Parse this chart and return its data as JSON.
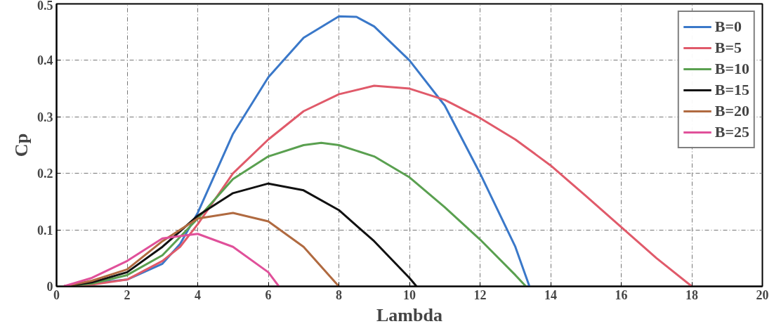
{
  "chart_data": {
    "type": "line",
    "xlabel": "Lambda",
    "ylabel": "Cp",
    "xlim": [
      0,
      20
    ],
    "xticks": [
      0,
      2,
      4,
      6,
      8,
      10,
      12,
      14,
      16,
      18,
      20
    ],
    "ylim": [
      0,
      0.5
    ],
    "yticks": [
      0,
      0.1,
      0.2,
      0.3,
      0.4,
      0.5
    ],
    "grid": true,
    "legend": "top right",
    "line_style": "solid",
    "marker": "none",
    "series": [
      {
        "name": "B=0",
        "color": "#3a78c9",
        "x": [
          0.2,
          2,
          3,
          3.5,
          4,
          5,
          6,
          7,
          8,
          8.5,
          9,
          10,
          11,
          12,
          13,
          13.4
        ],
        "values": [
          0,
          0.012,
          0.04,
          0.075,
          0.13,
          0.27,
          0.37,
          0.44,
          0.478,
          0.477,
          0.46,
          0.4,
          0.32,
          0.2,
          0.07,
          0
        ]
      },
      {
        "name": "B=5",
        "color": "#e05a6a",
        "x": [
          0.2,
          1,
          2,
          3,
          3.5,
          4,
          5,
          6,
          7,
          8,
          9,
          10,
          11,
          12,
          13,
          14,
          15,
          16,
          17,
          18
        ],
        "values": [
          0,
          0.003,
          0.012,
          0.045,
          0.07,
          0.11,
          0.2,
          0.26,
          0.31,
          0.34,
          0.355,
          0.35,
          0.33,
          0.298,
          0.26,
          0.214,
          0.16,
          0.105,
          0.05,
          0
        ]
      },
      {
        "name": "B=10",
        "color": "#5aa050",
        "x": [
          0.2,
          1,
          2,
          3,
          4,
          5,
          6,
          7,
          7.5,
          8,
          9,
          10,
          11,
          12,
          13,
          13.3
        ],
        "values": [
          0,
          0.005,
          0.02,
          0.055,
          0.12,
          0.19,
          0.23,
          0.25,
          0.254,
          0.25,
          0.23,
          0.193,
          0.14,
          0.083,
          0.02,
          0
        ]
      },
      {
        "name": "B=15",
        "color": "#111111",
        "x": [
          0.2,
          1,
          2,
          3,
          4,
          5,
          6,
          7,
          8,
          9,
          10,
          10.2
        ],
        "values": [
          0,
          0.007,
          0.025,
          0.07,
          0.125,
          0.165,
          0.182,
          0.17,
          0.135,
          0.08,
          0.015,
          0
        ]
      },
      {
        "name": "B=20",
        "color": "#b06a40",
        "x": [
          0.2,
          1,
          2,
          3,
          4,
          5,
          6,
          7,
          8
        ],
        "values": [
          0,
          0.01,
          0.03,
          0.08,
          0.12,
          0.13,
          0.115,
          0.07,
          0
        ]
      },
      {
        "name": "B=25",
        "color": "#e0509a",
        "x": [
          0.2,
          1,
          2,
          3,
          4,
          5,
          6,
          6.3
        ],
        "values": [
          0,
          0.015,
          0.045,
          0.085,
          0.093,
          0.07,
          0.025,
          0
        ]
      }
    ]
  }
}
